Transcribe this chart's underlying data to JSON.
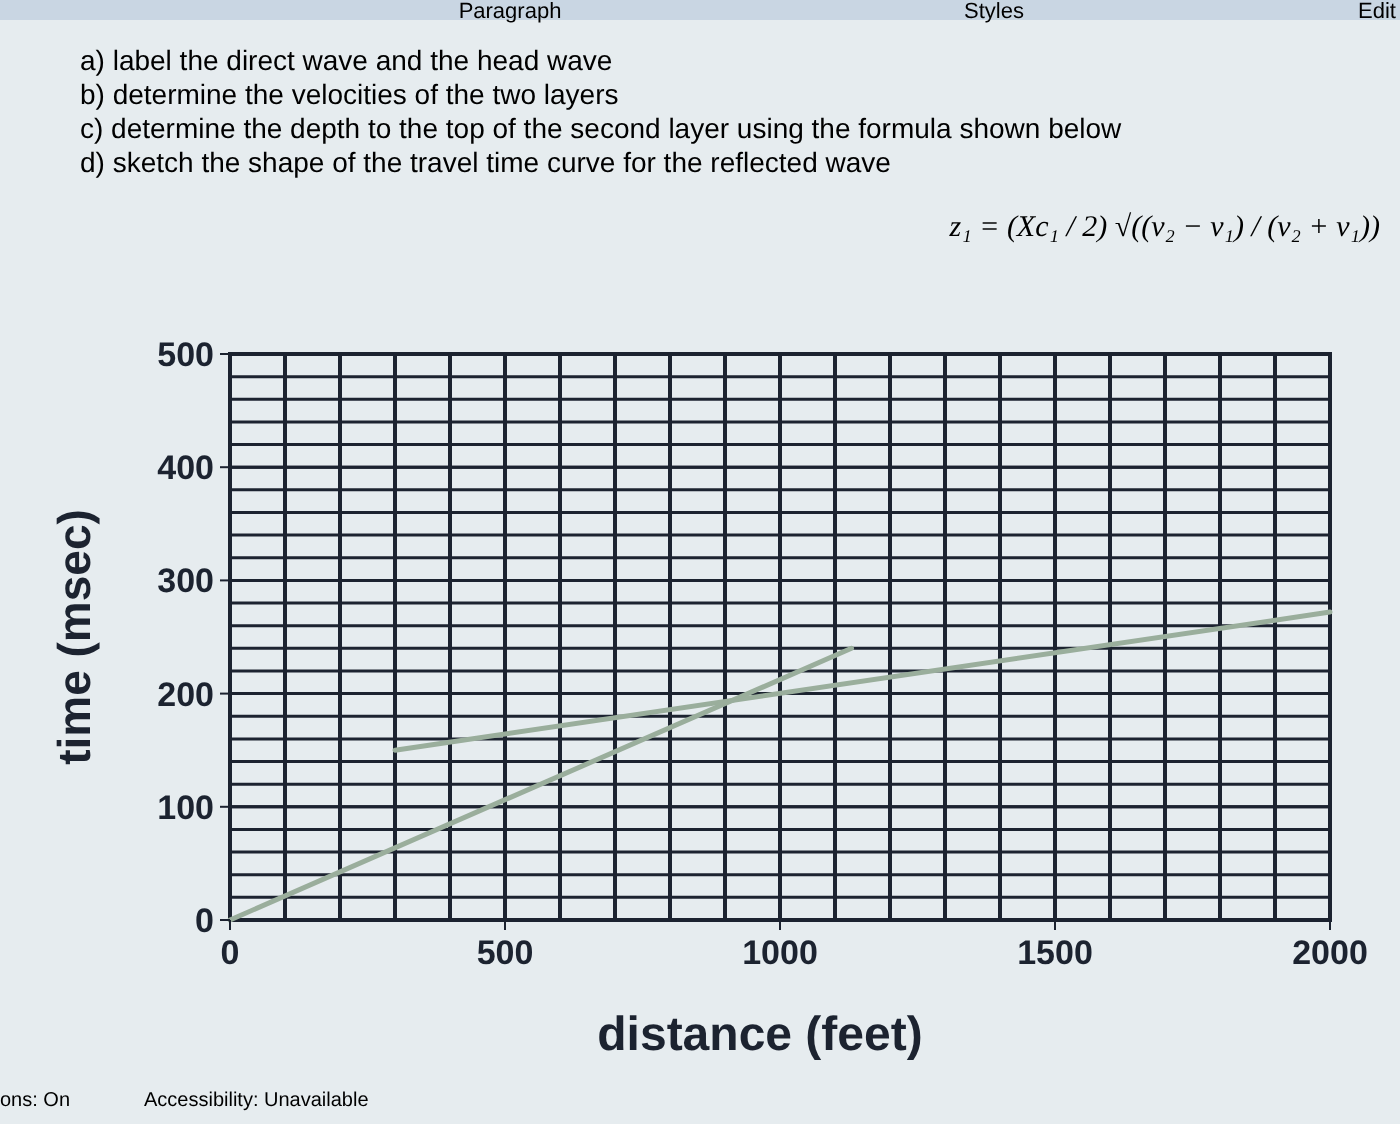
{
  "chart_data": {
    "type": "line",
    "xlabel": "distance (feet)",
    "ylabel": "time (msec)",
    "annotations": [
      "Paragraph",
      "Styles",
      "Edit",
      "a) label the direct wave and the head wave",
      "b) determine the velocities of the two layers",
      "c) determine the depth to the top of the second layer using the formula shown below",
      "d) sketch the shape of the travel time curve for the reflected wave",
      "z₁ = (Xc₁ / 2) √((v₂ − v₁) / (v₂ + v₁))",
      "ons: On",
      "Accessibility: Unavailable"
    ],
    "series": [
      {
        "color": "#9aae9c",
        "x": [
          0,
          1130
        ],
        "values": [
          0,
          240
        ]
      },
      {
        "color": "#9aae9c",
        "x": [
          300,
          2000
        ],
        "values": [
          150,
          272
        ]
      }
    ],
    "xlim": [
      0,
      2000
    ],
    "ylim": [
      0,
      500
    ],
    "xticks": [
      0,
      500,
      1000,
      1500,
      2000
    ],
    "yticks": [
      0,
      100,
      200,
      300,
      400,
      500
    ],
    "grid": true,
    "marker": "none",
    "line_style": "solid"
  }
}
